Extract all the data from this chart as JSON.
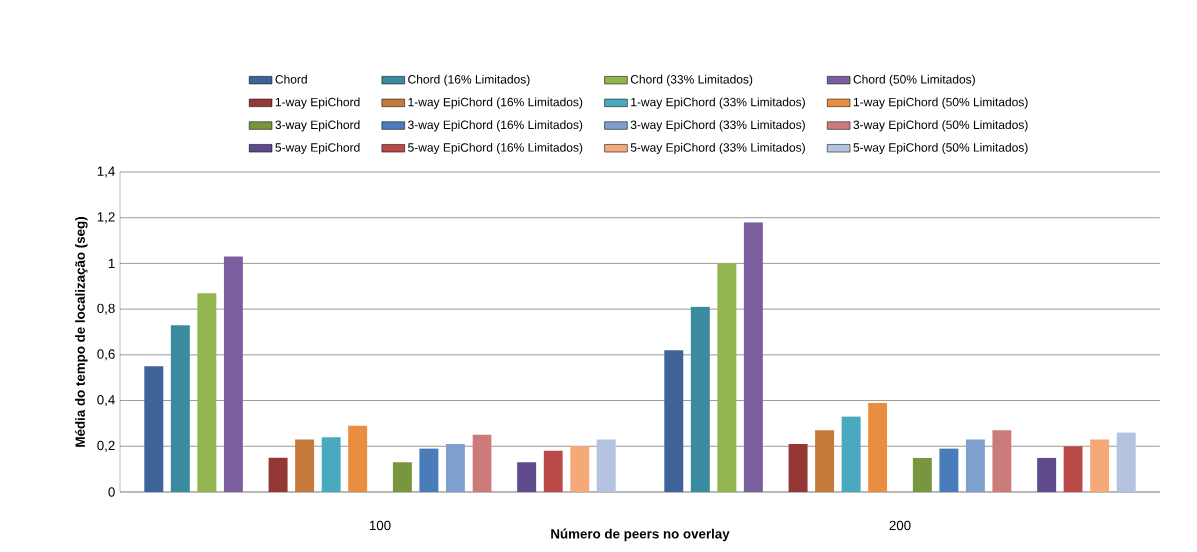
{
  "chart_data": {
    "type": "bar",
    "xlabel": "Número de peers no overlay",
    "ylabel": "Média do tempo de localização  (seg)",
    "categories": [
      "100",
      "200"
    ],
    "series": [
      {
        "name": "Chord",
        "color": "#3d6399",
        "values": [
          0.55,
          0.62
        ]
      },
      {
        "name": "Chord (16% Limitados)",
        "color": "#3b8ba0",
        "values": [
          0.73,
          0.81
        ]
      },
      {
        "name": "Chord (33% Limitados)",
        "color": "#93b550",
        "values": [
          0.87,
          1.0
        ]
      },
      {
        "name": "Chord (50% Limitados)",
        "color": "#7b5ea0",
        "values": [
          1.03,
          1.18
        ]
      },
      {
        "name": "1-way EpiChord",
        "color": "#953735",
        "values": [
          0.15,
          0.21
        ]
      },
      {
        "name": "1-way EpiChord (16% Limitados)",
        "color": "#c5793a",
        "values": [
          0.23,
          0.27
        ]
      },
      {
        "name": "1-way EpiChord (33% Limitados)",
        "color": "#4aa9c0",
        "values": [
          0.24,
          0.33
        ]
      },
      {
        "name": "1-way EpiChord (50% Limitados)",
        "color": "#e98e40",
        "values": [
          0.29,
          0.39
        ]
      },
      {
        "name": "3-way EpiChord",
        "color": "#77963d",
        "values": [
          0.13,
          0.15
        ]
      },
      {
        "name": "3-way EpiChord (16% Limitados)",
        "color": "#4a7cba",
        "values": [
          0.19,
          0.19
        ]
      },
      {
        "name": "3-way EpiChord (33% Limitados)",
        "color": "#7f9fcf",
        "values": [
          0.21,
          0.23
        ]
      },
      {
        "name": "3-way EpiChord (50% Limitados)",
        "color": "#cc7b7b",
        "values": [
          0.25,
          0.27
        ]
      },
      {
        "name": "5-way EpiChord",
        "color": "#5f4b8b",
        "values": [
          0.13,
          0.15
        ]
      },
      {
        "name": "5-way EpiChord (16% Limitados)",
        "color": "#b94a48",
        "values": [
          0.18,
          0.2
        ]
      },
      {
        "name": "5-way EpiChord (33% Limitados)",
        "color": "#f5a878",
        "values": [
          0.2,
          0.23
        ]
      },
      {
        "name": "5-way EpiChord (50% Limitados)",
        "color": "#b3c3e0",
        "values": [
          0.23,
          0.26
        ]
      }
    ],
    "ylim": [
      0,
      1.4
    ],
    "yticks": [
      0,
      {
        "value": 0.2,
        "label": "0,2"
      },
      {
        "value": 0.4,
        "label": "0,4"
      },
      {
        "value": 0.6,
        "label": "0,6"
      },
      {
        "value": 0.8,
        "label": "0,8"
      },
      1,
      {
        "value": 1.2,
        "label": "1,2"
      },
      {
        "value": 1.4,
        "label": "1,4"
      }
    ],
    "grid": "y",
    "legend": "top"
  }
}
